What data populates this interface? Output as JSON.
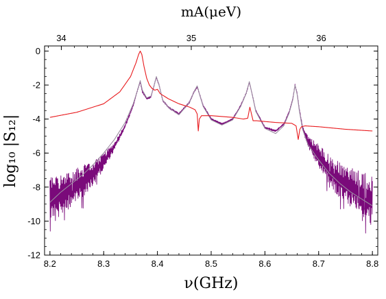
{
  "chart_data": {
    "type": "line",
    "title": "",
    "xlabel": "ν(GHz)",
    "ylabel": "log₁₀ |S₁₂|",
    "x2label": "mA(μeV)",
    "xlim": [
      8.19,
      8.81
    ],
    "ylim": [
      -12,
      0.3
    ],
    "x_ticks": [
      8.2,
      8.3,
      8.4,
      8.5,
      8.6,
      8.7,
      8.8
    ],
    "x_tick_labels": [
      "8.2",
      "8.3",
      "8.4",
      "8.5",
      "8.6",
      "8.7",
      "8.8"
    ],
    "y_ticks": [
      0,
      -2,
      -4,
      -6,
      -8,
      -10,
      -12
    ],
    "y_tick_labels": [
      "0",
      "-2",
      "-4",
      "-6",
      "-8",
      "-10",
      "-12"
    ],
    "x2_ticks": [
      34,
      35,
      36
    ],
    "x2_tick_labels": [
      "34",
      "35",
      "36"
    ],
    "x2_conversion_ueV_per_GHz": 4.135667,
    "grid": false,
    "legend": "none",
    "series": [
      {
        "role": "measured",
        "color": "#7a0a7a",
        "style": "noisy",
        "x": [
          8.2,
          8.22,
          8.24,
          8.26,
          8.28,
          8.3,
          8.32,
          8.34,
          8.355,
          8.362,
          8.368,
          8.372,
          8.38,
          8.388,
          8.394,
          8.398,
          8.403,
          8.41,
          8.42,
          8.44,
          8.46,
          8.468,
          8.474,
          8.478,
          8.485,
          8.5,
          8.52,
          8.54,
          8.555,
          8.565,
          8.571,
          8.576,
          8.583,
          8.6,
          8.62,
          8.635,
          8.645,
          8.652,
          8.656,
          8.66,
          8.664,
          8.67,
          8.68,
          8.7,
          8.72,
          8.74,
          8.76,
          8.78,
          8.8
        ],
        "y": [
          -8.6,
          -8.4,
          -8.1,
          -7.7,
          -7.2,
          -6.5,
          -5.6,
          -4.4,
          -3.2,
          -2.4,
          -1.8,
          -2.4,
          -2.8,
          -2.7,
          -2.0,
          -1.55,
          -2.0,
          -2.9,
          -3.3,
          -3.7,
          -3.0,
          -2.4,
          -2.1,
          -2.5,
          -3.2,
          -4.0,
          -4.3,
          -4.0,
          -3.2,
          -2.5,
          -1.85,
          -2.5,
          -3.5,
          -4.5,
          -4.7,
          -4.3,
          -3.6,
          -2.8,
          -2.0,
          -2.5,
          -3.4,
          -4.5,
          -5.3,
          -6.2,
          -7.0,
          -7.6,
          -8.0,
          -8.4,
          -8.8
        ],
        "noise_amplitude": [
          1.1,
          1.0,
          0.9,
          0.8,
          0.6,
          0.4,
          0.2,
          0.1,
          0.05,
          0.05,
          0.05,
          0.05,
          0.05,
          0.05,
          0.05,
          0.05,
          0.05,
          0.05,
          0.05,
          0.05,
          0.05,
          0.05,
          0.05,
          0.05,
          0.05,
          0.05,
          0.05,
          0.05,
          0.05,
          0.05,
          0.05,
          0.05,
          0.05,
          0.05,
          0.05,
          0.05,
          0.05,
          0.05,
          0.05,
          0.05,
          0.05,
          0.1,
          0.3,
          0.6,
          0.8,
          0.9,
          1.0,
          1.1,
          1.2
        ]
      },
      {
        "role": "fit",
        "color": "#9a8aa0",
        "style": "smooth",
        "x": [
          8.2,
          8.22,
          8.24,
          8.26,
          8.28,
          8.3,
          8.32,
          8.34,
          8.355,
          8.362,
          8.368,
          8.372,
          8.38,
          8.388,
          8.394,
          8.398,
          8.403,
          8.41,
          8.42,
          8.44,
          8.46,
          8.468,
          8.474,
          8.478,
          8.485,
          8.5,
          8.52,
          8.54,
          8.555,
          8.565,
          8.571,
          8.576,
          8.583,
          8.6,
          8.62,
          8.635,
          8.645,
          8.652,
          8.656,
          8.66,
          8.664,
          8.67,
          8.68,
          8.7,
          8.72,
          8.74,
          8.76,
          8.78,
          8.8
        ],
        "y": [
          -8.9,
          -8.3,
          -7.8,
          -7.3,
          -6.7,
          -6.0,
          -5.2,
          -4.2,
          -3.1,
          -2.4,
          -1.75,
          -2.3,
          -2.75,
          -2.65,
          -2.0,
          -1.5,
          -2.0,
          -2.9,
          -3.3,
          -3.75,
          -3.0,
          -2.4,
          -2.05,
          -2.5,
          -3.25,
          -4.05,
          -4.35,
          -4.05,
          -3.25,
          -2.5,
          -1.8,
          -2.5,
          -3.55,
          -4.55,
          -4.85,
          -4.4,
          -3.65,
          -2.85,
          -2.0,
          -2.55,
          -3.5,
          -4.6,
          -5.5,
          -6.4,
          -7.2,
          -7.8,
          -8.3,
          -8.7,
          -9.1
        ]
      },
      {
        "role": "reference",
        "color": "#e8191c",
        "style": "smooth",
        "x": [
          8.2,
          8.25,
          8.3,
          8.33,
          8.35,
          8.36,
          8.365,
          8.368,
          8.371,
          8.375,
          8.38,
          8.385,
          8.39,
          8.395,
          8.4,
          8.405,
          8.42,
          8.44,
          8.46,
          8.47,
          8.474,
          8.476,
          8.478,
          8.482,
          8.5,
          8.54,
          8.56,
          8.568,
          8.572,
          8.575,
          8.578,
          8.585,
          8.62,
          8.65,
          8.658,
          8.662,
          8.665,
          8.668,
          8.675,
          8.7,
          8.75,
          8.8
        ],
        "y": [
          -3.9,
          -3.6,
          -3.1,
          -2.4,
          -1.5,
          -0.7,
          -0.2,
          0.0,
          -0.2,
          -0.9,
          -1.6,
          -2.0,
          -2.2,
          -2.3,
          -2.25,
          -2.5,
          -2.8,
          -3.1,
          -3.3,
          -3.45,
          -3.7,
          -4.7,
          -4.0,
          -3.8,
          -3.8,
          -3.9,
          -4.0,
          -3.95,
          -3.3,
          -3.7,
          -4.1,
          -4.1,
          -4.2,
          -4.25,
          -4.4,
          -5.2,
          -4.6,
          -4.45,
          -4.4,
          -4.45,
          -4.6,
          -4.7
        ]
      }
    ]
  }
}
